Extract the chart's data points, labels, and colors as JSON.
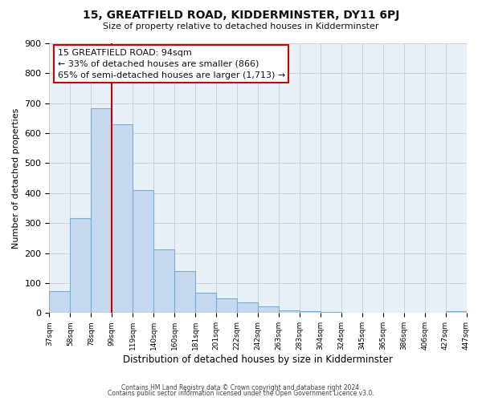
{
  "title": "15, GREATFIELD ROAD, KIDDERMINSTER, DY11 6PJ",
  "subtitle": "Size of property relative to detached houses in Kidderminster",
  "xlabel": "Distribution of detached houses by size in Kidderminster",
  "ylabel": "Number of detached properties",
  "footer_lines": [
    "Contains HM Land Registry data © Crown copyright and database right 2024.",
    "Contains public sector information licensed under the Open Government Licence v3.0."
  ],
  "bin_labels": [
    "37sqm",
    "58sqm",
    "78sqm",
    "99sqm",
    "119sqm",
    "140sqm",
    "160sqm",
    "181sqm",
    "201sqm",
    "222sqm",
    "242sqm",
    "263sqm",
    "283sqm",
    "304sqm",
    "324sqm",
    "345sqm",
    "365sqm",
    "386sqm",
    "406sqm",
    "427sqm",
    "447sqm"
  ],
  "bar_values": [
    72,
    318,
    683,
    630,
    411,
    211,
    139,
    68,
    48,
    36,
    22,
    10,
    5,
    4,
    1,
    0,
    0,
    0,
    0,
    5
  ],
  "bar_color": "#c5d8ee",
  "bar_edge_color": "#7aafd4",
  "bar_edge_width": 0.8,
  "vline_color": "#cc0000",
  "vline_lw": 1.5,
  "ylim": [
    0,
    900
  ],
  "yticks": [
    0,
    100,
    200,
    300,
    400,
    500,
    600,
    700,
    800,
    900
  ],
  "annotation_line1": "15 GREATFIELD ROAD: 94sqm",
  "annotation_line2": "← 33% of detached houses are smaller (866)",
  "annotation_line3": "65% of semi-detached houses are larger (1,713) →",
  "grid_color": "#cccccc",
  "background_color": "#ffffff",
  "plot_bg_color": "#e8f0f8"
}
